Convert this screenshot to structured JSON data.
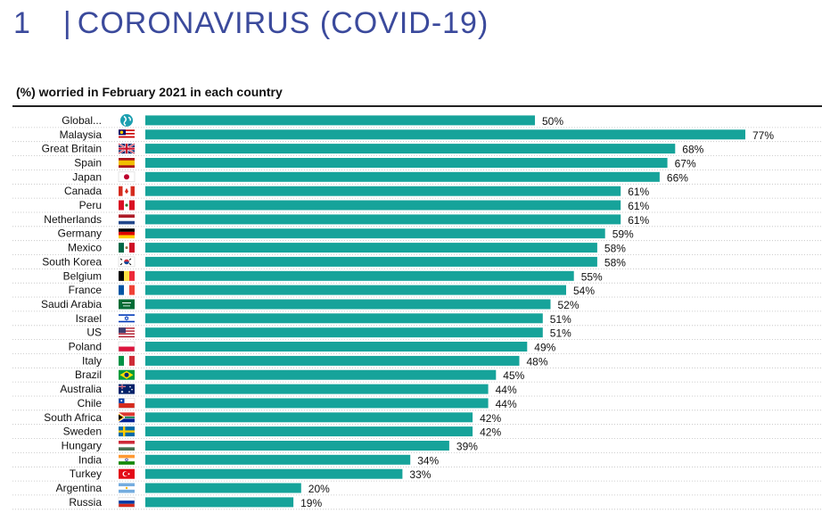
{
  "header": {
    "number": "1",
    "separator": "|",
    "title": "CORONAVIRUS (COVID-19)"
  },
  "chart_data": {
    "type": "bar",
    "orientation": "horizontal",
    "title": "(%) worried in February 2021 in each country",
    "bar_color": "#16a39a",
    "value_suffix": "%",
    "xlim": [
      0,
      77
    ],
    "categories": [
      "Global...",
      "Malaysia",
      "Great Britain",
      "Spain",
      "Japan",
      "Canada",
      "Peru",
      "Netherlands",
      "Germany",
      "Mexico",
      "South Korea",
      "Belgium",
      "France",
      "Saudi Arabia",
      "Israel",
      "US",
      "Poland",
      "Italy",
      "Brazil",
      "Australia",
      "Chile",
      "South Africa",
      "Sweden",
      "Hungary",
      "India",
      "Turkey",
      "Argentina",
      "Russia"
    ],
    "values": [
      50,
      77,
      68,
      67,
      66,
      61,
      61,
      61,
      59,
      58,
      58,
      55,
      54,
      52,
      51,
      51,
      49,
      48,
      45,
      44,
      44,
      42,
      42,
      39,
      34,
      33,
      20,
      19
    ],
    "flag_icons": [
      "globe-icon",
      "flag-malaysia-icon",
      "flag-great-britain-icon",
      "flag-spain-icon",
      "flag-japan-icon",
      "flag-canada-icon",
      "flag-peru-icon",
      "flag-netherlands-icon",
      "flag-germany-icon",
      "flag-mexico-icon",
      "flag-south-korea-icon",
      "flag-belgium-icon",
      "flag-france-icon",
      "flag-saudi-arabia-icon",
      "flag-israel-icon",
      "flag-us-icon",
      "flag-poland-icon",
      "flag-italy-icon",
      "flag-brazil-icon",
      "flag-australia-icon",
      "flag-chile-icon",
      "flag-south-africa-icon",
      "flag-sweden-icon",
      "flag-hungary-icon",
      "flag-india-icon",
      "flag-turkey-icon",
      "flag-argentina-icon",
      "flag-russia-icon"
    ]
  }
}
